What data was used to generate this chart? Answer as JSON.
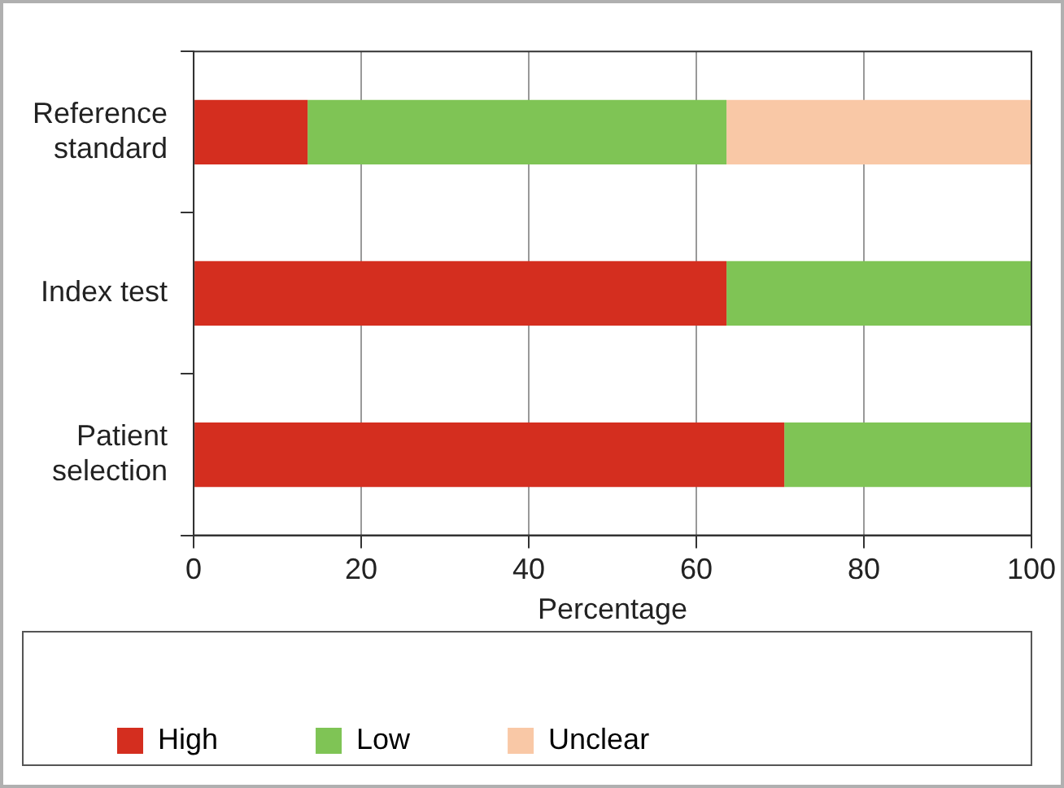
{
  "chart_data": {
    "type": "bar",
    "orientation": "horizontal",
    "stacked": true,
    "xlabel": "Percentage",
    "categories": [
      "Reference standard",
      "Index test",
      "Patient selection"
    ],
    "series": [
      {
        "name": "High",
        "color": "#d42e1f",
        "values": [
          13.6,
          63.6,
          70.5
        ]
      },
      {
        "name": "Low",
        "color": "#7fc455",
        "values": [
          50,
          36.4,
          29.5
        ]
      },
      {
        "name": "Unclear",
        "color": "#f9c8a6",
        "values": [
          36.4,
          0,
          0
        ]
      }
    ],
    "xlim": [
      0,
      100
    ],
    "xticks": [
      0,
      20,
      40,
      60,
      80,
      100
    ],
    "grid": "x",
    "legend": "bottom"
  }
}
